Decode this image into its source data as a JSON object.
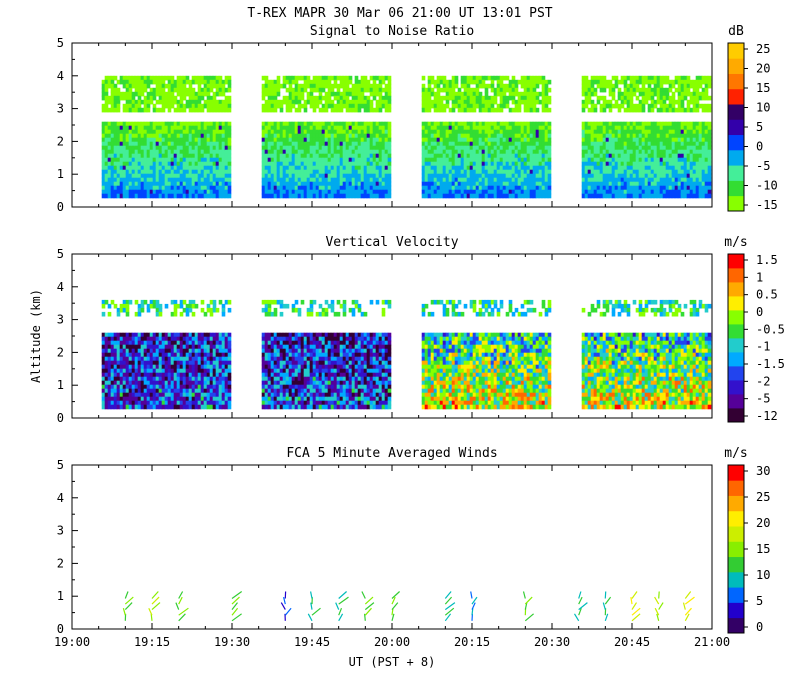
{
  "header": {
    "title": "T-REX   MAPR 30 Mar 06   21:00 UT   13:01   PST"
  },
  "colors": {
    "snr": [
      "#88ff00",
      "#33dd33",
      "#44ee99",
      "#00aaee",
      "#0044ff",
      "#3300aa",
      "#330066",
      "#ff2200",
      "#ff7700",
      "#ffaa00",
      "#ffcc00"
    ],
    "vv": [
      "#330033",
      "#550099",
      "#3311cc",
      "#2244ee",
      "#00aaff",
      "#22cccc",
      "#33dd33",
      "#88ff00",
      "#ffee00",
      "#ffaa00",
      "#ff6600",
      "#ff0000"
    ],
    "wind": [
      "#330066",
      "#2200cc",
      "#0066ff",
      "#00bbbb",
      "#33cc33",
      "#88ee00",
      "#ccee00",
      "#ffee00",
      "#ffaa00",
      "#ff6600",
      "#ff0000"
    ]
  },
  "chart_data": [
    {
      "type": "heatmap",
      "title": "Signal to Noise Ratio",
      "ylabel": "",
      "ylim": [
        0,
        5
      ],
      "yticks": [
        "0",
        "1",
        "2",
        "3",
        "4",
        "5"
      ],
      "colorbar_unit": "dB",
      "colorbar_labels": [
        "-15",
        "-10",
        "-5",
        "0",
        "5",
        "10",
        "15",
        "20",
        "25"
      ],
      "data_segments_ut": [
        [
          "19:05",
          "19:30"
        ],
        [
          "19:35",
          "20:00"
        ],
        [
          "20:05",
          "20:30"
        ],
        [
          "20:35",
          "21:00"
        ]
      ],
      "layers_km": [
        [
          0.3,
          2.6
        ],
        [
          3.0,
          4.0
        ]
      ]
    },
    {
      "type": "heatmap",
      "title": "Vertical Velocity",
      "ylabel": "Altitude (km)",
      "ylim": [
        0,
        5
      ],
      "yticks": [
        "0",
        "1",
        "2",
        "3",
        "4",
        "5"
      ],
      "colorbar_unit": "m/s",
      "colorbar_labels": [
        "-12",
        "-5",
        "-2",
        "-1.5",
        "-1",
        "-0.5",
        "0",
        "0.5",
        "1",
        "1.5"
      ],
      "data_segments_ut": [
        [
          "19:05",
          "19:30"
        ],
        [
          "19:35",
          "20:00"
        ],
        [
          "20:05",
          "20:30"
        ],
        [
          "20:35",
          "21:00"
        ]
      ],
      "layers_km": [
        [
          0.3,
          2.6
        ],
        [
          3.2,
          3.6
        ]
      ]
    },
    {
      "type": "scatter",
      "title": "FCA 5 Minute Averaged Winds",
      "ylabel": "",
      "ylim": [
        0,
        5
      ],
      "yticks": [
        "0",
        "1",
        "2",
        "3",
        "4",
        "5"
      ],
      "colorbar_unit": "m/s",
      "colorbar_labels": [
        "0",
        "5",
        "10",
        "15",
        "20",
        "25",
        "30"
      ],
      "wind_times_min": [
        10,
        15,
        20,
        30,
        40,
        45,
        50,
        55,
        60,
        70,
        75,
        85,
        95,
        100,
        105,
        110,
        115
      ],
      "wind_speeds": [
        12,
        14,
        12,
        13,
        2,
        10,
        9,
        11,
        12,
        10,
        5,
        11,
        8,
        10,
        17,
        16,
        18
      ]
    }
  ],
  "xaxis": {
    "label": "UT  (PST + 8)",
    "ticks": [
      "19:00",
      "19:15",
      "19:30",
      "19:45",
      "20:00",
      "20:15",
      "20:30",
      "20:45",
      "21:00"
    ]
  }
}
